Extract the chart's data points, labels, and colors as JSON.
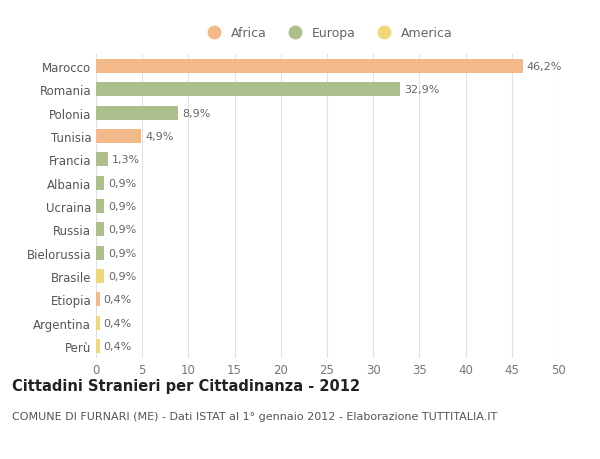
{
  "categories": [
    "Marocco",
    "Romania",
    "Polonia",
    "Tunisia",
    "Francia",
    "Albania",
    "Ucraina",
    "Russia",
    "Bielorussia",
    "Brasile",
    "Etiopia",
    "Argentina",
    "Perù"
  ],
  "values": [
    46.2,
    32.9,
    8.9,
    4.9,
    1.3,
    0.9,
    0.9,
    0.9,
    0.9,
    0.9,
    0.4,
    0.4,
    0.4
  ],
  "labels": [
    "46,2%",
    "32,9%",
    "8,9%",
    "4,9%",
    "1,3%",
    "0,9%",
    "0,9%",
    "0,9%",
    "0,9%",
    "0,9%",
    "0,4%",
    "0,4%",
    "0,4%"
  ],
  "colors": [
    "#F4B989",
    "#ABBE8B",
    "#ABBE8B",
    "#F4B989",
    "#ABBE8B",
    "#ABBE8B",
    "#ABBE8B",
    "#ABBE8B",
    "#ABBE8B",
    "#F0D878",
    "#F4B989",
    "#F0D878",
    "#F0D878"
  ],
  "legend_labels": [
    "Africa",
    "Europa",
    "America"
  ],
  "legend_colors": [
    "#F4B989",
    "#ABBE8B",
    "#F0D878"
  ],
  "title": "Cittadini Stranieri per Cittadinanza - 2012",
  "subtitle": "COMUNE DI FURNARI (ME) - Dati ISTAT al 1° gennaio 2012 - Elaborazione TUTTITALIA.IT",
  "xlim": [
    0,
    50
  ],
  "xticks": [
    0,
    5,
    10,
    15,
    20,
    25,
    30,
    35,
    40,
    45,
    50
  ],
  "background_color": "#ffffff",
  "grid_color": "#e0e0e0",
  "bar_height": 0.6,
  "title_fontsize": 10.5,
  "subtitle_fontsize": 8,
  "tick_fontsize": 8.5,
  "label_fontsize": 8,
  "legend_fontsize": 9
}
